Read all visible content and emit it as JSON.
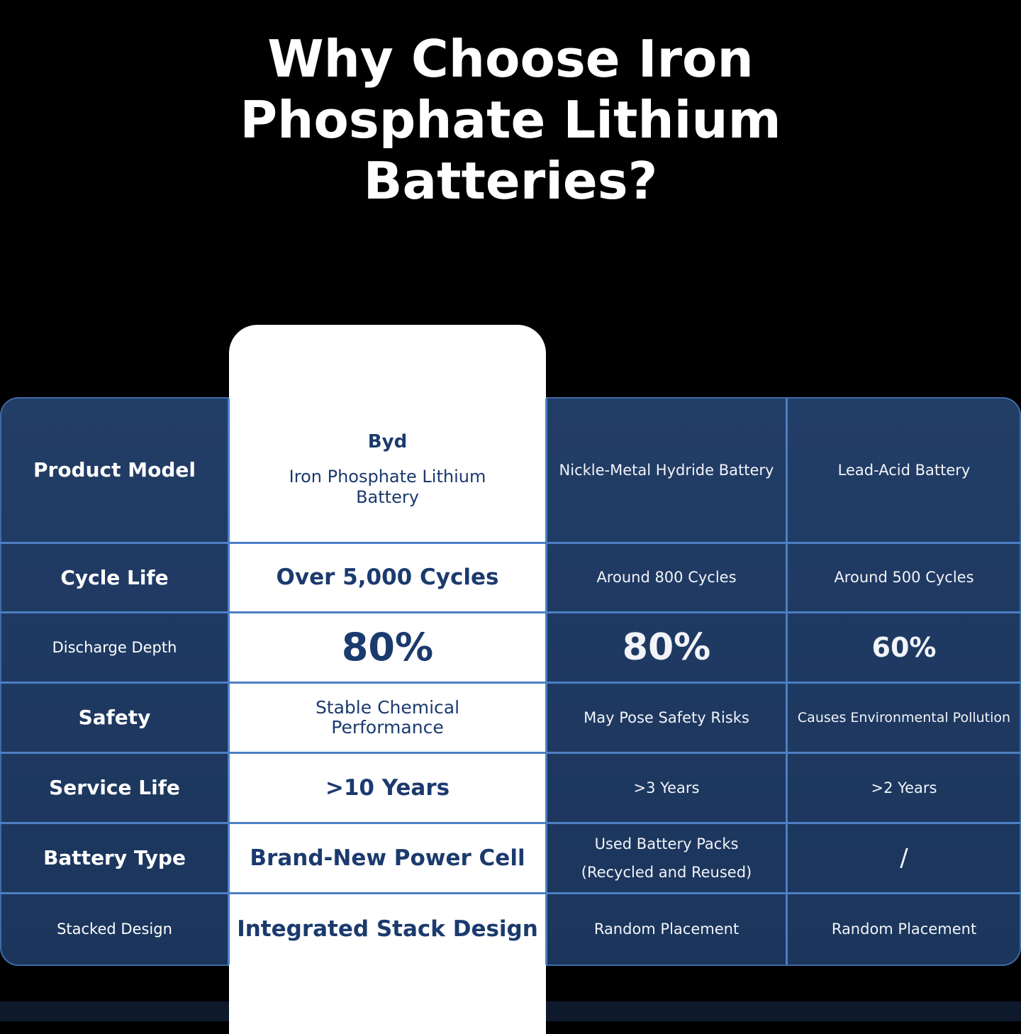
{
  "title": "Why Choose Iron Phosphate Lithium Batteries?",
  "table": {
    "header": {
      "label": "Product Model",
      "brand": "Byd",
      "highlight": "Iron Phosphate Lithium Battery",
      "others": [
        "Nickle-Metal Hydride Battery",
        "Lead-Acid Battery"
      ]
    },
    "rows": [
      [
        "Cycle Life",
        "Over 5,000 Cycles",
        "Around 800 Cycles",
        "Around 500 Cycles"
      ],
      [
        "Discharge Depth",
        "80%",
        "80%",
        "60%"
      ],
      [
        "Safety",
        "Stable Chemical Performance",
        "May Pose Safety Risks",
        "Causes Environmental Pollution"
      ],
      [
        "Service Life",
        ">10 Years",
        ">3 Years",
        ">2 Years"
      ],
      [
        "Battery Type",
        "Brand-New Power Cell",
        "Used Battery Packs (Recycled and Reused)",
        "/"
      ],
      [
        "Stacked Design",
        "Integrated Stack Design",
        "Random Placement",
        "Random Placement"
      ]
    ]
  }
}
